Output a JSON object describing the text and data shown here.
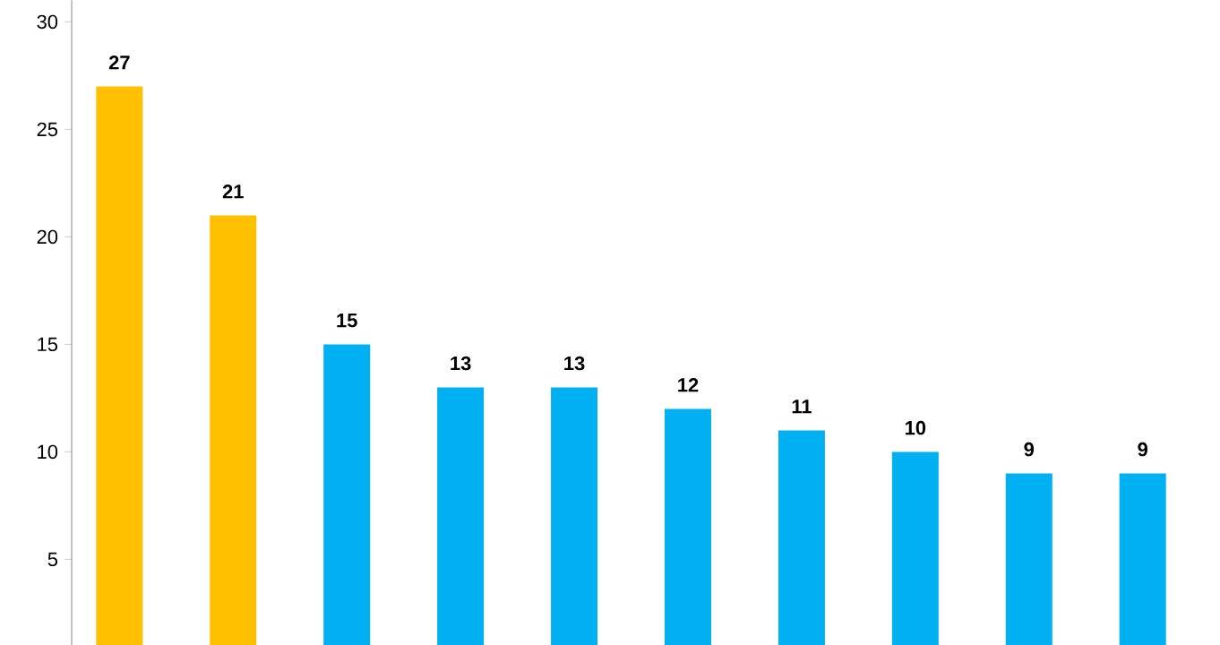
{
  "chart_data": {
    "type": "bar",
    "categories": [
      null,
      null,
      null,
      null,
      null,
      null,
      null,
      null,
      null,
      null
    ],
    "values": [
      27,
      21,
      15,
      13,
      13,
      12,
      11,
      10,
      9,
      9
    ],
    "colors": [
      "#ffc000",
      "#ffc000",
      "#00b0f0",
      "#00b0f0",
      "#00b0f0",
      "#00b0f0",
      "#00b0f0",
      "#00b0f0",
      "#00b0f0",
      "#00b0f0"
    ],
    "ylim": [
      1,
      31
    ],
    "yticks": [
      5,
      10,
      15,
      20,
      25,
      30
    ],
    "data_labels": true,
    "grid": false,
    "tick_labels": "y"
  }
}
